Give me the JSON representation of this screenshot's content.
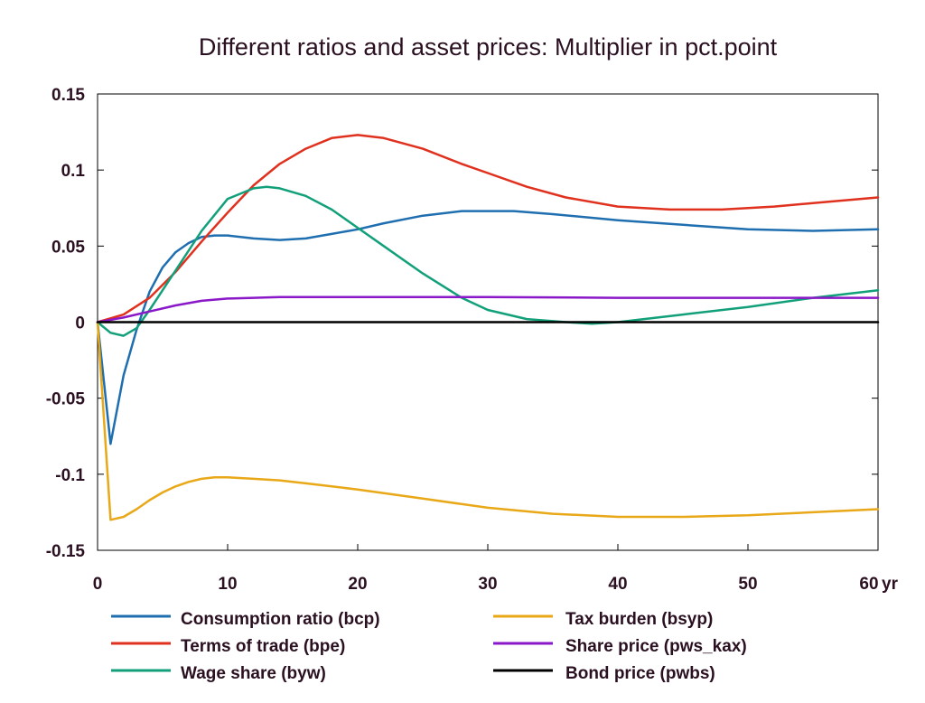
{
  "chart_data": {
    "type": "line",
    "title": "Different ratios and asset prices: Multiplier in pct.point",
    "xlabel": "",
    "ylabel": "",
    "x_unit_label": "yr",
    "xlim": [
      0,
      60
    ],
    "ylim": [
      -0.15,
      0.15
    ],
    "x_ticks": [
      0,
      10,
      20,
      30,
      40,
      50,
      60
    ],
    "y_ticks": [
      0.15,
      0.1,
      0.05,
      0,
      -0.05,
      -0.1,
      -0.15
    ],
    "y_tick_labels": [
      "0.15",
      "0.1",
      "0.05",
      "0",
      "-0.05",
      "-0.1",
      "-0.15"
    ],
    "grid": false,
    "legend_position": "bottom",
    "series": [
      {
        "name": "Consumption ratio (bcp)",
        "color": "#1f6fb0",
        "x": [
          0,
          1,
          2,
          3,
          4,
          5,
          6,
          7,
          8,
          9,
          10,
          12,
          14,
          16,
          18,
          20,
          22,
          25,
          28,
          30,
          32,
          35,
          40,
          45,
          50,
          55,
          60
        ],
        "y": [
          0,
          -0.08,
          -0.035,
          -0.005,
          0.02,
          0.036,
          0.046,
          0.052,
          0.056,
          0.057,
          0.057,
          0.055,
          0.054,
          0.055,
          0.058,
          0.061,
          0.065,
          0.07,
          0.073,
          0.073,
          0.073,
          0.071,
          0.067,
          0.064,
          0.061,
          0.06,
          0.061
        ]
      },
      {
        "name": "Terms of trade (bpe)",
        "color": "#e0301e",
        "x": [
          0,
          2,
          4,
          6,
          8,
          10,
          12,
          14,
          16,
          18,
          20,
          22,
          25,
          28,
          30,
          33,
          36,
          40,
          44,
          48,
          52,
          56,
          60
        ],
        "y": [
          0,
          0.005,
          0.016,
          0.033,
          0.053,
          0.072,
          0.09,
          0.104,
          0.114,
          0.121,
          0.123,
          0.121,
          0.114,
          0.104,
          0.098,
          0.089,
          0.082,
          0.076,
          0.074,
          0.074,
          0.076,
          0.079,
          0.082
        ]
      },
      {
        "name": "Wage share (byw)",
        "color": "#12a07a",
        "x": [
          0,
          1,
          2,
          3,
          4,
          5,
          6,
          8,
          10,
          12,
          13,
          14,
          16,
          18,
          20,
          22,
          25,
          28,
          30,
          33,
          36,
          38,
          40,
          45,
          50,
          55,
          60
        ],
        "y": [
          0,
          -0.007,
          -0.009,
          -0.004,
          0.008,
          0.021,
          0.034,
          0.06,
          0.081,
          0.088,
          0.089,
          0.088,
          0.083,
          0.074,
          0.062,
          0.05,
          0.032,
          0.016,
          0.008,
          0.002,
          0.0,
          -0.001,
          0.0,
          0.005,
          0.01,
          0.016,
          0.021
        ]
      },
      {
        "name": "Tax burden (bsyp)",
        "color": "#e8a818",
        "x": [
          0,
          1,
          2,
          3,
          4,
          5,
          6,
          7,
          8,
          9,
          10,
          12,
          14,
          16,
          18,
          20,
          25,
          30,
          35,
          40,
          45,
          50,
          55,
          60
        ],
        "y": [
          0,
          -0.13,
          -0.128,
          -0.123,
          -0.117,
          -0.112,
          -0.108,
          -0.105,
          -0.103,
          -0.102,
          -0.102,
          -0.103,
          -0.104,
          -0.106,
          -0.108,
          -0.11,
          -0.116,
          -0.122,
          -0.126,
          -0.128,
          -0.128,
          -0.127,
          -0.125,
          -0.123
        ]
      },
      {
        "name": "Share price (pws_kax)",
        "color": "#8a18c8",
        "x": [
          0,
          2,
          4,
          6,
          8,
          10,
          12,
          14,
          16,
          20,
          30,
          40,
          50,
          60
        ],
        "y": [
          0,
          0.003,
          0.007,
          0.011,
          0.014,
          0.0155,
          0.016,
          0.0165,
          0.0165,
          0.0165,
          0.0165,
          0.016,
          0.016,
          0.016
        ]
      },
      {
        "name": "Bond price (pwbs)",
        "color": "#000000",
        "x": [
          0,
          60
        ],
        "y": [
          0,
          0
        ]
      }
    ]
  }
}
